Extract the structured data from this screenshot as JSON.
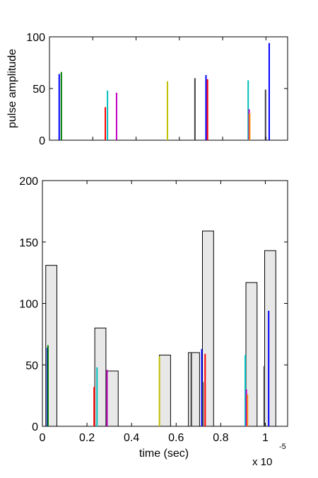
{
  "chart_data": [
    {
      "type": "stem",
      "title": "",
      "xlabel": "",
      "ylabel": "pulse amplitude",
      "xlim": [
        0,
        1.1
      ],
      "ylim": [
        0,
        100
      ],
      "yticks": [
        0,
        50,
        100
      ],
      "ytick_labels": [
        "0",
        "50",
        "100"
      ],
      "xticks": [
        0,
        0.2,
        0.4,
        0.6,
        0.8,
        1.0
      ],
      "grid": false,
      "series": [
        {
          "color": "#0000ff",
          "x": [
            0.045,
            0.723,
            1.015
          ],
          "y": [
            64,
            63,
            94
          ]
        },
        {
          "color": "#008000",
          "x": [
            0.055
          ],
          "y": [
            66
          ]
        },
        {
          "color": "#ff0000",
          "x": [
            0.258,
            0.73
          ],
          "y": [
            32,
            59
          ]
        },
        {
          "color": "#00bfbf",
          "x": [
            0.268,
            0.918
          ],
          "y": [
            48,
            58
          ]
        },
        {
          "color": "#bf00bf",
          "x": [
            0.31,
            0.922
          ],
          "y": [
            46,
            30
          ]
        },
        {
          "color": "#bfbf00",
          "x": [
            0.545
          ],
          "y": [
            57
          ]
        },
        {
          "color": "#404040",
          "x": [
            0.672,
            0.998
          ],
          "y": [
            60,
            49
          ]
        },
        {
          "color": "#ff8c00",
          "x": [
            0.925
          ],
          "y": [
            26
          ]
        }
      ]
    },
    {
      "type": "bar",
      "title": "",
      "xlabel": "time (sec)",
      "ylabel": "",
      "x_exponent_label": "x 10",
      "x_exponent": "-5",
      "xlim": [
        0,
        1.1
      ],
      "ylim": [
        0,
        200
      ],
      "xticks": [
        0,
        0.2,
        0.4,
        0.6,
        0.8,
        1.0
      ],
      "xtick_labels": [
        "0",
        "0.2",
        "0.4",
        "0.6",
        "0.8",
        "1"
      ],
      "yticks": [
        0,
        50,
        100,
        150,
        200
      ],
      "ytick_labels": [
        "0",
        "50",
        "100",
        "150",
        "200"
      ],
      "grid": false,
      "bar_color": "#e8e8e8",
      "bars": [
        {
          "x_start": 0.015,
          "x_end": 0.065,
          "value": 131
        },
        {
          "x_start": 0.235,
          "x_end": 0.285,
          "value": 80
        },
        {
          "x_start": 0.29,
          "x_end": 0.34,
          "value": 45
        },
        {
          "x_start": 0.525,
          "x_end": 0.575,
          "value": 58
        },
        {
          "x_start": 0.655,
          "x_end": 0.705,
          "value": 60
        },
        {
          "x_start": 0.718,
          "x_end": 0.768,
          "value": 159
        },
        {
          "x_start": 0.913,
          "x_end": 0.963,
          "value": 117
        },
        {
          "x_start": 0.997,
          "x_end": 1.047,
          "value": 143
        }
      ],
      "series": [
        {
          "color": "#0000ff",
          "x": [
            0.022,
            0.715,
            1.015
          ],
          "y": [
            64,
            63,
            94
          ]
        },
        {
          "color": "#008000",
          "x": [
            0.025
          ],
          "y": [
            66
          ]
        },
        {
          "color": "#ff0000",
          "x": [
            0.232,
            0.73
          ],
          "y": [
            32,
            59
          ]
        },
        {
          "color": "#00bfbf",
          "x": [
            0.245,
            0.91
          ],
          "y": [
            48,
            58
          ]
        },
        {
          "color": "#bf00bf",
          "x": [
            0.29,
            0.915
          ],
          "y": [
            46,
            30
          ]
        },
        {
          "color": "#bfbf00",
          "x": [
            0.525
          ],
          "y": [
            57
          ]
        },
        {
          "color": "#404040",
          "x": [
            0.668,
            0.995,
            0.72
          ],
          "y": [
            60,
            49,
            36
          ]
        },
        {
          "color": "#ff8c00",
          "x": [
            0.92
          ],
          "y": [
            26
          ]
        }
      ]
    }
  ]
}
